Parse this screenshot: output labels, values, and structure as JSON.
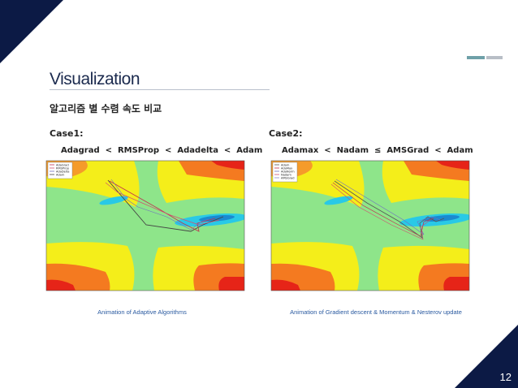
{
  "slide": {
    "title": "Visualization",
    "subtitle": "알고리즘 별 수렴 속도 비교",
    "page_number": "12"
  },
  "colors": {
    "navy": "#0c1a45",
    "accent_teal": "#6fa0a8",
    "accent_gray": "#b8bec6"
  },
  "cases": [
    {
      "label": "Case1:",
      "comparison": "Adagrad  <  RMSProp  <  Adadelta  <  Adam",
      "legend": [
        "AdaGrad",
        "RMSProp",
        "AdaDelta",
        "Adam"
      ],
      "caption": "Animation of Adaptive Algorithms"
    },
    {
      "label": "Case2:",
      "comparison": "Adamax  <  Nadam  ≤  AMSGrad  <  Adam",
      "legend": [
        "Adam",
        "AdaMax",
        "AdaNorm",
        "Nadam",
        "AMSGrad"
      ],
      "caption": "Animation of Gradient descent & Momentum & Nesterov update"
    }
  ]
}
